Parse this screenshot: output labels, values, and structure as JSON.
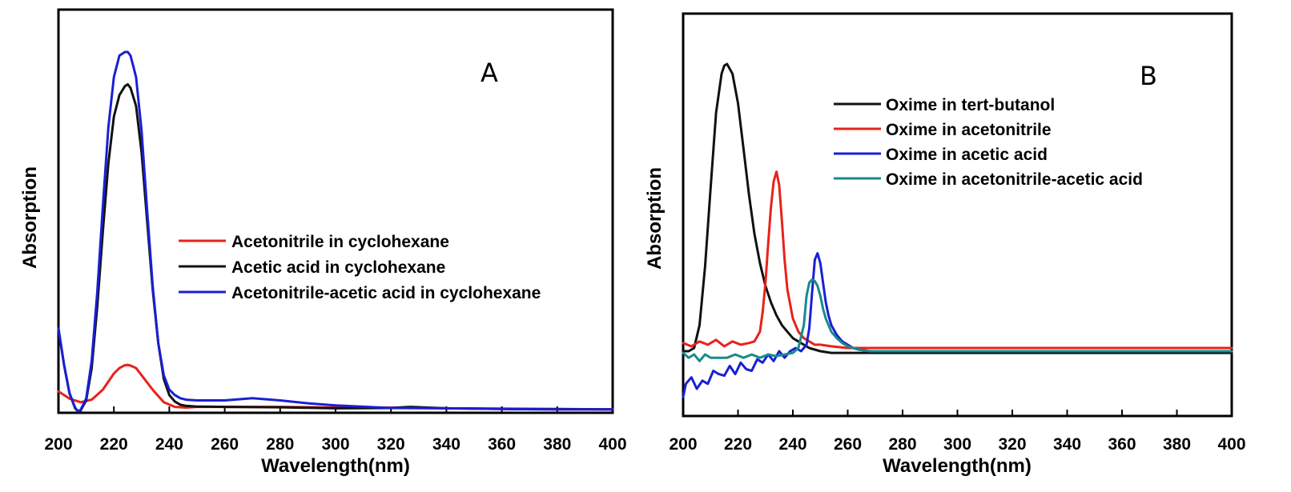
{
  "chart_data": [
    {
      "type": "line",
      "panel_label": "A",
      "xlabel": "Wavelength(nm)",
      "ylabel": "Absorption",
      "xlim": [
        200,
        400
      ],
      "ylim": [
        0,
        1
      ],
      "x_ticks": [
        "200",
        "220",
        "240",
        "260",
        "280",
        "300",
        "320",
        "340",
        "360",
        "380",
        "400"
      ],
      "legend_position": "center-right",
      "series": [
        {
          "name": "Acetonitrile in cyclohexane",
          "color": "#e8221b",
          "x": [
            200,
            204,
            208,
            212,
            216,
            220,
            222,
            224,
            225,
            226,
            228,
            230,
            234,
            238,
            242,
            246,
            250,
            260,
            280,
            300,
            320,
            340,
            360,
            380,
            400
          ],
          "y": [
            0.055,
            0.035,
            0.025,
            0.032,
            0.06,
            0.105,
            0.12,
            0.128,
            0.129,
            0.127,
            0.12,
            0.1,
            0.06,
            0.025,
            0.012,
            0.01,
            0.012,
            0.012,
            0.012,
            0.01,
            0.01,
            0.008,
            0.006,
            0.005,
            0.005
          ]
        },
        {
          "name": "Acetic acid in cyclohexane",
          "color": "#111111",
          "x": [
            200,
            202,
            204,
            206,
            207,
            208,
            210,
            212,
            214,
            216,
            218,
            220,
            222,
            224,
            225,
            226,
            228,
            230,
            232,
            234,
            236,
            238,
            240,
            242,
            244,
            246,
            250,
            260,
            280,
            300,
            320,
            327,
            340,
            360,
            380,
            400
          ],
          "y": [
            0.23,
            0.13,
            0.05,
            0.008,
            0.0,
            0.002,
            0.03,
            0.12,
            0.29,
            0.5,
            0.69,
            0.82,
            0.88,
            0.905,
            0.91,
            0.9,
            0.85,
            0.72,
            0.53,
            0.34,
            0.19,
            0.09,
            0.045,
            0.027,
            0.018,
            0.015,
            0.013,
            0.012,
            0.011,
            0.008,
            0.009,
            0.012,
            0.008,
            0.007,
            0.006,
            0.005
          ]
        },
        {
          "name": "Acetonitrile-acetic acid in cyclohexane",
          "color": "#1a1fd4",
          "x": [
            200,
            202,
            204,
            206,
            207,
            208,
            210,
            212,
            214,
            216,
            218,
            220,
            222,
            224,
            225,
            226,
            228,
            230,
            232,
            234,
            236,
            238,
            240,
            242,
            244,
            246,
            250,
            260,
            270,
            280,
            290,
            300,
            320,
            340,
            360,
            380,
            400
          ],
          "y": [
            0.23,
            0.13,
            0.05,
            0.01,
            0.0,
            0.004,
            0.035,
            0.14,
            0.33,
            0.57,
            0.79,
            0.93,
            0.99,
            1.0,
            1.0,
            0.99,
            0.93,
            0.78,
            0.56,
            0.35,
            0.19,
            0.1,
            0.06,
            0.045,
            0.036,
            0.032,
            0.03,
            0.03,
            0.036,
            0.03,
            0.022,
            0.016,
            0.009,
            0.008,
            0.006,
            0.005,
            0.005
          ]
        }
      ]
    },
    {
      "type": "line",
      "panel_label": "B",
      "xlabel": "Wavelength(nm)",
      "ylabel": "Absorption",
      "xlim": [
        200,
        400
      ],
      "ylim": [
        0,
        1
      ],
      "x_ticks": [
        "200",
        "220",
        "240",
        "260",
        "280",
        "300",
        "320",
        "340",
        "360",
        "380",
        "400"
      ],
      "legend_position": "top-right",
      "series": [
        {
          "name": "Oxime in tert-butanol",
          "color": "#111111",
          "x": [
            200,
            202,
            204,
            206,
            208,
            210,
            212,
            214,
            215,
            216,
            218,
            220,
            222,
            224,
            226,
            228,
            230,
            232,
            234,
            236,
            238,
            240,
            242,
            244,
            246,
            248,
            250,
            254,
            260,
            280,
            300,
            400
          ],
          "y": [
            0.12,
            0.12,
            0.13,
            0.2,
            0.38,
            0.62,
            0.85,
            0.97,
            0.995,
            1.0,
            0.97,
            0.88,
            0.74,
            0.6,
            0.48,
            0.39,
            0.32,
            0.27,
            0.23,
            0.2,
            0.18,
            0.16,
            0.15,
            0.14,
            0.13,
            0.125,
            0.12,
            0.115,
            0.115,
            0.115,
            0.115,
            0.115
          ]
        },
        {
          "name": "Oxime in acetonitrile",
          "color": "#e8221b",
          "x": [
            200,
            203,
            206,
            209,
            212,
            215,
            218,
            221,
            224,
            226,
            228,
            229,
            230,
            231,
            232,
            233,
            234,
            235,
            236,
            237,
            238,
            240,
            242,
            244,
            246,
            248,
            250,
            254,
            260,
            280,
            300,
            400
          ],
          "y": [
            0.145,
            0.135,
            0.15,
            0.14,
            0.155,
            0.135,
            0.15,
            0.14,
            0.145,
            0.15,
            0.18,
            0.24,
            0.33,
            0.45,
            0.56,
            0.64,
            0.67,
            0.63,
            0.52,
            0.4,
            0.31,
            0.22,
            0.18,
            0.16,
            0.15,
            0.14,
            0.14,
            0.135,
            0.13,
            0.13,
            0.13,
            0.13
          ]
        },
        {
          "name": "Oxime in acetic acid",
          "color": "#1a1fd4",
          "x": [
            200,
            201,
            203,
            205,
            207,
            209,
            211,
            213,
            215,
            217,
            219,
            221,
            223,
            225,
            227,
            229,
            231,
            233,
            235,
            237,
            239,
            241,
            243,
            245,
            246,
            247,
            248,
            249,
            250,
            251,
            252,
            253,
            254,
            256,
            258,
            260,
            262,
            264,
            268,
            280,
            300,
            400
          ],
          "y": [
            -0.02,
            0.02,
            0.04,
            0.005,
            0.03,
            0.02,
            0.06,
            0.05,
            0.045,
            0.075,
            0.05,
            0.085,
            0.065,
            0.06,
            0.095,
            0.085,
            0.11,
            0.09,
            0.12,
            0.1,
            0.12,
            0.13,
            0.12,
            0.14,
            0.19,
            0.3,
            0.4,
            0.42,
            0.39,
            0.33,
            0.27,
            0.23,
            0.2,
            0.17,
            0.15,
            0.14,
            0.13,
            0.125,
            0.12,
            0.12,
            0.12,
            0.12
          ]
        },
        {
          "name": "Oxime in acetonitrile-acetic acid",
          "color": "#1a8a8a",
          "x": [
            200,
            202,
            204,
            206,
            208,
            210,
            213,
            216,
            219,
            222,
            225,
            228,
            231,
            234,
            237,
            240,
            242,
            244,
            245,
            246,
            247,
            248,
            249,
            250,
            251,
            252,
            254,
            256,
            258,
            260,
            264,
            268,
            280,
            300,
            400
          ],
          "y": [
            0.115,
            0.1,
            0.11,
            0.09,
            0.11,
            0.1,
            0.1,
            0.1,
            0.11,
            0.1,
            0.11,
            0.1,
            0.11,
            0.105,
            0.11,
            0.115,
            0.13,
            0.2,
            0.29,
            0.33,
            0.34,
            0.335,
            0.32,
            0.29,
            0.25,
            0.22,
            0.18,
            0.16,
            0.145,
            0.135,
            0.125,
            0.12,
            0.12,
            0.12,
            0.12
          ]
        }
      ]
    }
  ]
}
